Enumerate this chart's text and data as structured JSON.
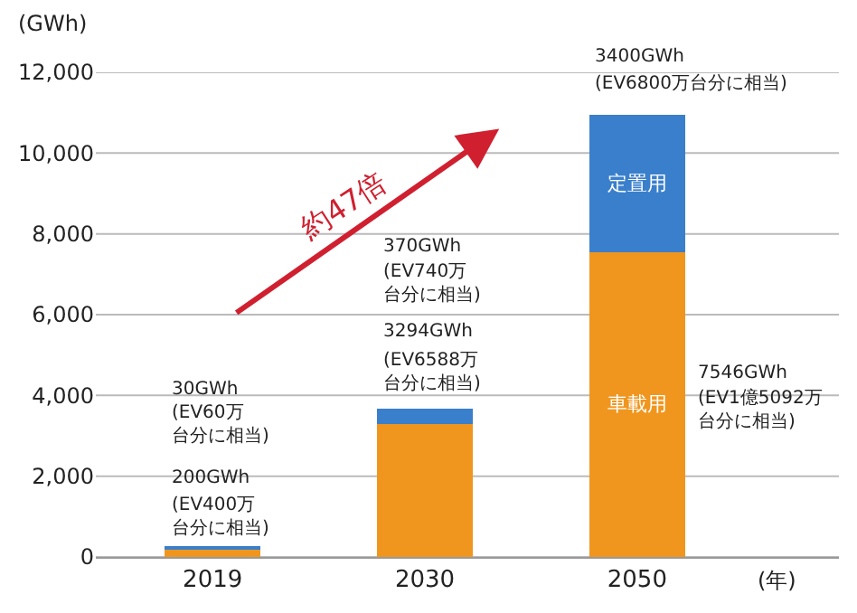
{
  "chart_data": {
    "type": "bar",
    "stacked": true,
    "categories": [
      "2019",
      "2030",
      "2050"
    ],
    "series": [
      {
        "name": "車載用",
        "color": "#f0961e",
        "values": [
          200,
          3294,
          7546
        ]
      },
      {
        "name": "定置用",
        "color": "#3a7fcb",
        "values": [
          30,
          370,
          3400
        ]
      }
    ],
    "ylabel": "(GWh)",
    "xlabel": "(年)",
    "ylim": [
      0,
      12000
    ],
    "yticks": [
      0,
      {
        "value": 2000,
        "label": "2,000"
      },
      {
        "value": 4000,
        "label": "4,000"
      },
      {
        "value": 6000,
        "label": "6,000"
      },
      {
        "value": 8000,
        "label": "8,000"
      },
      {
        "value": 10000,
        "label": "10,000"
      },
      {
        "value": 12000,
        "label": "12,000"
      }
    ],
    "grid": "y",
    "legend": false,
    "annotations": [
      "30GWh",
      "(EV60万台分に相当)",
      "200GWh",
      "(EV400万台分に相当)",
      "370GWh",
      "(EV740万台分に相当)",
      "3294GWh",
      "(EV6588万台分に相当)",
      "3400GWh",
      "(EV6800万台分に相当)",
      "7546GWh",
      "(EV1億5092万台分に相当)",
      "約47倍"
    ]
  }
}
